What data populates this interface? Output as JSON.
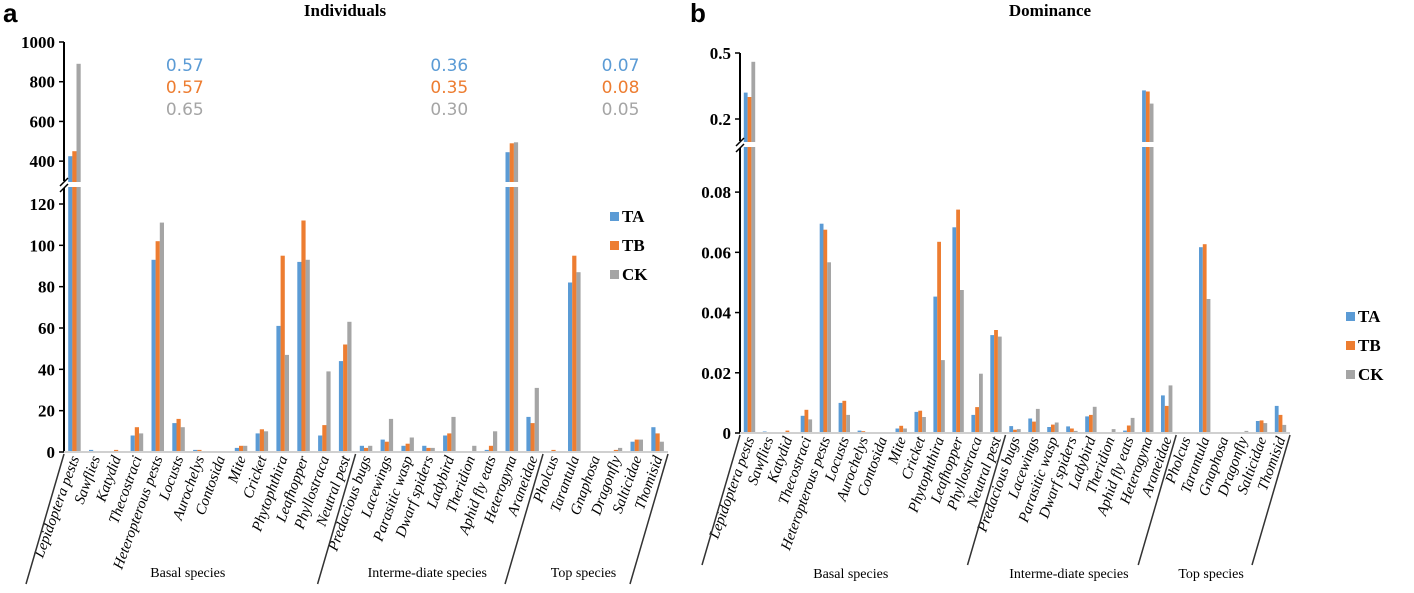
{
  "figure": {
    "series_colors": {
      "TA": "#5b9bd5",
      "TB": "#ed7d31",
      "CK": "#a5a5a5"
    }
  },
  "chart_data": [
    {
      "panel": "a",
      "type": "bar",
      "title": "Individuals",
      "xlabel": "",
      "ylabel": "",
      "axis_break": {
        "lower_range": [
          0,
          120
        ],
        "upper_range": [
          300,
          1000
        ]
      },
      "yticks_lower": [
        "0",
        "20",
        "40",
        "60",
        "80",
        "100",
        "120"
      ],
      "yticks_upper": [
        "400",
        "600",
        "800",
        "1000"
      ],
      "legend": [
        "TA",
        "TB",
        "CK"
      ],
      "legend_position": "right",
      "categories": [
        "Lepidoptera pests",
        "Sawflies",
        "Katydid",
        "Thecostraci",
        "Heteropterous pests",
        "Locusts",
        "Aurochelys",
        "Contosida",
        "Mite",
        "Cricket",
        "Phytophthira",
        "Leafhopper",
        "Phyllostraca",
        "Neutral pest",
        "Predacious bugs",
        "Lacewings",
        "Parasitic wasp",
        "Dwarf spiders",
        "Ladybird",
        "Theridion",
        "Aphid fly eats",
        "Heterogyna",
        "Araneidae",
        "Pholcus",
        "Tarantula",
        "Gnaphosa",
        "Dragonfly",
        "Salticidae",
        "Thomisid"
      ],
      "groups": [
        {
          "label": "Basal species",
          "start": 0,
          "end": 13
        },
        {
          "label": "Interme-diate species",
          "start": 14,
          "end": 22
        },
        {
          "label": "Top species",
          "start": 23,
          "end": 28
        }
      ],
      "group_annotations": [
        {
          "group": "Basal species",
          "TA": "0.57",
          "TB": "0.57",
          "CK": "0.65"
        },
        {
          "group": "Interme-diate species",
          "TA": "0.36",
          "TB": "0.35",
          "CK": "0.30"
        },
        {
          "group": "Top species",
          "TA": "0.07",
          "TB": "0.08",
          "CK": "0.05"
        }
      ],
      "series": [
        {
          "name": "TA",
          "values": [
            425,
            1,
            0.5,
            8,
            93,
            14,
            1,
            0,
            2,
            9,
            61,
            92,
            8,
            44,
            3,
            6,
            3,
            3,
            8,
            0,
            1,
            445,
            17,
            0,
            82,
            0,
            0,
            5,
            12
          ]
        },
        {
          "name": "TB",
          "values": [
            450,
            0,
            1,
            12,
            102,
            16,
            1,
            0,
            3,
            11,
            95,
            112,
            13,
            52,
            2,
            5,
            4,
            2,
            9,
            0,
            3,
            490,
            14,
            1,
            95,
            0,
            1,
            6,
            9
          ]
        },
        {
          "name": "CK",
          "values": [
            890,
            0,
            0,
            9,
            111,
            12,
            0,
            0,
            3,
            10,
            47,
            93,
            39,
            63,
            3,
            16,
            7,
            2,
            17,
            3,
            10,
            495,
            31,
            0,
            87,
            0,
            2,
            6,
            5
          ]
        }
      ]
    },
    {
      "panel": "b",
      "type": "bar",
      "title": "Dominance",
      "xlabel": "",
      "ylabel": "",
      "axis_break": {
        "lower_range": [
          0,
          0.09
        ],
        "upper_range": [
          0.1,
          0.5
        ]
      },
      "yticks_lower": [
        "0",
        "0.02",
        "0.04",
        "0.06",
        "0.08"
      ],
      "yticks_upper": [
        "0.2",
        "0.5"
      ],
      "legend": [
        "TA",
        "TB",
        "CK"
      ],
      "legend_position": "right",
      "categories": [
        "Lepidoptera pests",
        "Sawflies",
        "Katydid",
        "Thecostraci",
        "Heteropterous pests",
        "Locusts",
        "Aurochelys",
        "Contosida",
        "Mite",
        "Cricket",
        "Phytophthira",
        "Leafhopper",
        "Phyllostraca",
        "Neutral pest",
        "Predacious bugs",
        "Lacewings",
        "Parasitic wasp",
        "Dwarf spiders",
        "Ladybird",
        "Theridion",
        "Aphid fly eats",
        "Heterogyna",
        "Araneidae",
        "Pholcus",
        "Tarantula",
        "Gnaphosa",
        "Dragonfly",
        "Salticidae",
        "Thomisid"
      ],
      "groups": [
        {
          "label": "Basal species",
          "start": 0,
          "end": 13
        },
        {
          "label": "Interme-diate species",
          "start": 14,
          "end": 22
        },
        {
          "label": "Top species",
          "start": 23,
          "end": 28
        }
      ],
      "series": [
        {
          "name": "TA",
          "values": [
            0.32,
            0.0005,
            0.0003,
            0.0057,
            0.0695,
            0.01,
            0.0008,
            0,
            0.0015,
            0.007,
            0.0453,
            0.0683,
            0.006,
            0.0325,
            0.0023,
            0.0048,
            0.002,
            0.0022,
            0.0055,
            0,
            0.0008,
            0.33,
            0.0125,
            0,
            0.0617,
            0,
            0,
            0.004,
            0.009
          ]
        },
        {
          "name": "TB",
          "values": [
            0.3,
            0,
            0.0008,
            0.0077,
            0.0675,
            0.0107,
            0.0006,
            0,
            0.0024,
            0.0074,
            0.0635,
            0.0742,
            0.0086,
            0.0342,
            0.0011,
            0.0038,
            0.0028,
            0.0015,
            0.006,
            0.0002,
            0.0025,
            0.325,
            0.009,
            0.0003,
            0.0627,
            0,
            0.0003,
            0.0042,
            0.006
          ]
        },
        {
          "name": "CK",
          "values": [
            0.46,
            0,
            0,
            0.0045,
            0.0567,
            0.006,
            0,
            0,
            0.0015,
            0.0053,
            0.0242,
            0.0475,
            0.0197,
            0.032,
            0.0013,
            0.008,
            0.0035,
            0.0007,
            0.0087,
            0.0013,
            0.005,
            0.27,
            0.0158,
            0,
            0.0445,
            0,
            0.0007,
            0.0033,
            0.0027
          ]
        }
      ]
    }
  ]
}
